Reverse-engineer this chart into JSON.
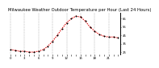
{
  "title": "Milwaukee Weather Outdoor Temperature per Hour (Last 24 Hours)",
  "hours": [
    0,
    1,
    2,
    3,
    4,
    5,
    6,
    7,
    8,
    9,
    10,
    11,
    12,
    13,
    14,
    15,
    16,
    17,
    18,
    19,
    20,
    21,
    22,
    23
  ],
  "temps": [
    28,
    27,
    26,
    26,
    25,
    25,
    26,
    28,
    32,
    38,
    45,
    53,
    60,
    65,
    68,
    67,
    62,
    55,
    50,
    46,
    44,
    43,
    43,
    42
  ],
  "line_color": "#dd0000",
  "marker_color": "#000000",
  "bg_color": "#ffffff",
  "grid_color": "#888888",
  "title_color": "#000000",
  "ylim": [
    22,
    72
  ],
  "ytick_vals": [
    25,
    35,
    45,
    55,
    65
  ],
  "ytick_labels": [
    "25",
    "35",
    "45",
    "55",
    "65"
  ],
  "title_fontsize": 3.8,
  "axis_fontsize": 2.8,
  "grid_interval": 3
}
